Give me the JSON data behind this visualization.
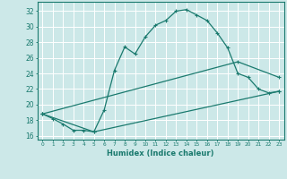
{
  "xlabel": "Humidex (Indice chaleur)",
  "background_color": "#cce8e8",
  "grid_color": "#b0d4d4",
  "line_color": "#1a7a6e",
  "xlim": [
    -0.5,
    23.5
  ],
  "ylim": [
    15.5,
    33.2
  ],
  "xticks": [
    0,
    1,
    2,
    3,
    4,
    5,
    6,
    7,
    8,
    9,
    10,
    11,
    12,
    13,
    14,
    15,
    16,
    17,
    18,
    19,
    20,
    21,
    22,
    23
  ],
  "yticks": [
    16,
    18,
    20,
    22,
    24,
    26,
    28,
    30,
    32
  ],
  "line1_x": [
    0,
    1,
    2,
    3,
    4,
    5,
    6,
    7,
    8,
    9,
    10,
    11,
    12,
    13,
    14,
    15,
    16,
    17,
    18,
    19,
    20,
    21,
    22,
    23
  ],
  "line1_y": [
    18.8,
    18.2,
    17.5,
    16.7,
    16.7,
    16.5,
    19.3,
    24.4,
    27.4,
    26.5,
    28.7,
    30.2,
    30.8,
    32.0,
    32.2,
    31.5,
    30.8,
    29.2,
    27.3,
    24.0,
    23.5,
    22.0,
    21.5,
    21.7
  ],
  "line2_x": [
    0,
    5,
    23
  ],
  "line2_y": [
    18.8,
    16.5,
    21.7
  ],
  "line3_x": [
    0,
    19,
    23
  ],
  "line3_y": [
    18.8,
    25.5,
    23.5
  ]
}
